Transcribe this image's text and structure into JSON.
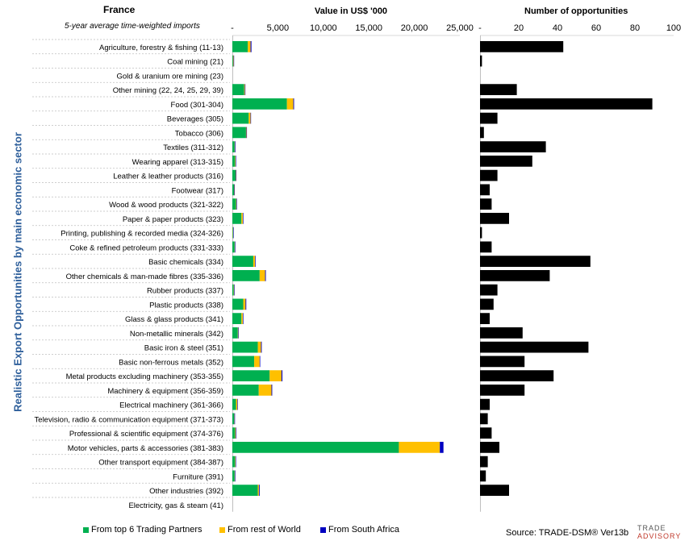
{
  "country": "France",
  "subtitle": "5-year average time-weighted imports",
  "y_axis_title": "Realistic Export Opportunities by main economic sector",
  "source": "Source: TRADE-DSM®  Ver13b",
  "logo": {
    "line1": "TRADE",
    "line2": "ADVISORY"
  },
  "colors": {
    "top6": "#00b050",
    "rest": "#ffc000",
    "sa": "#0000c0",
    "opps": "#000000",
    "axis_title": "#2e5f9b"
  },
  "chart_data": [
    {
      "type": "bar",
      "orientation": "horizontal",
      "stacked": true,
      "title": "Value in US$ '000",
      "xlim": [
        0,
        25000
      ],
      "ticks": [
        "-",
        "5,000",
        "10,000",
        "15,000",
        "20,000",
        "25,000"
      ],
      "tick_values": [
        0,
        5000,
        10000,
        15000,
        20000,
        25000
      ],
      "legend_position": "bottom",
      "categories": [
        "Agriculture, forestry & fishing (11-13)",
        "Coal mining (21)",
        "Gold & uranium ore mining (23)",
        "Other mining (22, 24, 25, 29, 39)",
        "Food (301-304)",
        "Beverages (305)",
        "Tobacco (306)",
        "Textiles (311-312)",
        "Wearing apparel (313-315)",
        "Leather & leather products (316)",
        "Footwear (317)",
        "Wood & wood products (321-322)",
        "Paper & paper products (323)",
        "Printing, publishing & recorded media (324-326)",
        "Coke & refined petroleum products (331-333)",
        "Basic chemicals (334)",
        "Other chemicals & man-made fibres (335-336)",
        "Rubber products (337)",
        "Plastic products (338)",
        "Glass & glass products (341)",
        "Non-metallic minerals (342)",
        "Basic iron & steel (351)",
        "Basic non-ferrous metals (352)",
        "Metal products excluding machinery (353-355)",
        "Machinery & equipment (356-359)",
        "Electrical machinery (361-366)",
        "Television, radio & communication equipment (371-373)",
        "Professional & scientific equipment (374-376)",
        "Motor vehicles, parts & accessories (381-383)",
        "Other transport equipment (384-387)",
        "Furniture (391)",
        "Other industries (392)",
        "Electricity, gas & steam (41)"
      ],
      "series": [
        {
          "name": "From top 6 Trading Partners",
          "color": "#00b050",
          "values": [
            1700,
            80,
            0,
            1300,
            6000,
            1800,
            1500,
            250,
            300,
            350,
            180,
            400,
            1000,
            60,
            250,
            2300,
            3000,
            150,
            1200,
            1000,
            600,
            2800,
            2400,
            4100,
            2900,
            400,
            200,
            300,
            18300,
            300,
            250,
            2800,
            0
          ]
        },
        {
          "name": "From rest of World",
          "color": "#ffc000",
          "values": [
            300,
            60,
            0,
            80,
            700,
            200,
            50,
            30,
            60,
            40,
            30,
            60,
            150,
            30,
            30,
            200,
            600,
            50,
            250,
            150,
            50,
            350,
            600,
            1300,
            1400,
            150,
            30,
            80,
            4500,
            50,
            30,
            120,
            0
          ]
        },
        {
          "name": "From South Africa",
          "color": "#0000c0",
          "values": [
            100,
            10,
            0,
            50,
            80,
            50,
            40,
            60,
            30,
            30,
            40,
            30,
            60,
            10,
            40,
            60,
            80,
            30,
            80,
            60,
            40,
            80,
            60,
            100,
            80,
            40,
            60,
            60,
            400,
            40,
            40,
            80,
            0
          ]
        }
      ]
    },
    {
      "type": "bar",
      "orientation": "horizontal",
      "title": "Number of opportunities",
      "xlim": [
        0,
        100
      ],
      "ticks": [
        "-",
        "20",
        "40",
        "60",
        "80",
        "100"
      ],
      "tick_values": [
        0,
        20,
        40,
        60,
        80,
        100
      ],
      "series": [
        {
          "name": "Number of opportunities",
          "color": "#000000",
          "values": [
            43,
            1,
            0,
            19,
            89,
            9,
            2,
            34,
            27,
            9,
            5,
            6,
            15,
            1,
            6,
            57,
            36,
            9,
            7,
            5,
            22,
            56,
            23,
            38,
            23,
            5,
            4,
            6,
            10,
            4,
            3,
            15,
            0
          ]
        }
      ]
    }
  ]
}
